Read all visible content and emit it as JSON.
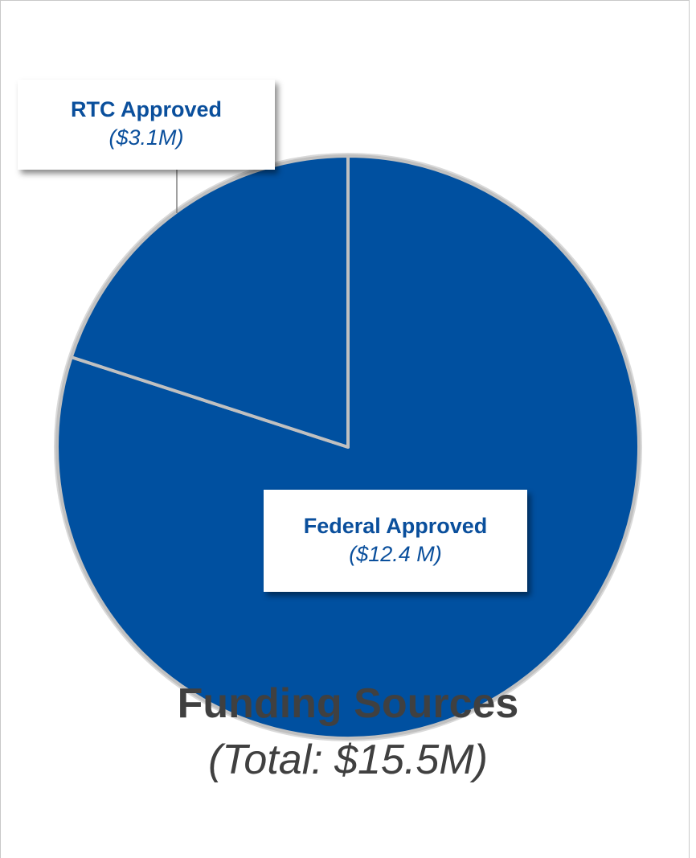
{
  "chart_data": {
    "type": "pie",
    "title": "Funding Sources",
    "subtitle": "(Total: $15.5M)",
    "slices": [
      {
        "name": "Federal Approved",
        "value": 12.4,
        "label": "($12.4 M)",
        "color": "#0050a0"
      },
      {
        "name": "RTC Approved",
        "value": 3.1,
        "label": "($3.1M)",
        "color": "#0050a0"
      }
    ],
    "slice_border_color": "#c0c0c0",
    "label_color": "#0a4f9c"
  }
}
